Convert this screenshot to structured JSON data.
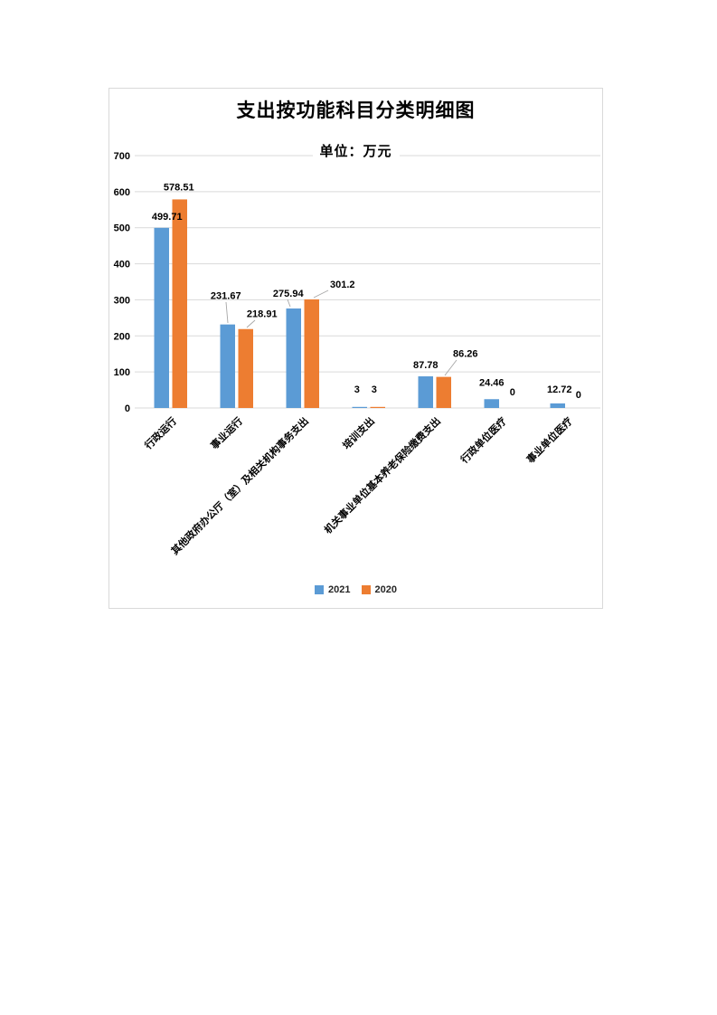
{
  "document": {
    "page_background": "#ffffff"
  },
  "chart": {
    "title": "支出按功能科目分类明细图",
    "unit_label": "单位：万元",
    "frame_border_color": "#d9d9d9",
    "gridline_color": "#d9d9d9",
    "axis_text_color": "#000000",
    "data_label_color": "#000000",
    "leader_line_color": "#a6a6a6"
  },
  "chart_data": {
    "type": "bar",
    "title": "支出按功能科目分类明细图",
    "subtitle": "单位：万元",
    "categories": [
      "行政运行",
      "事业运行",
      "其他政府办公厅（室）及相关机构事务支出",
      "培训支出",
      "机关事业单位基本养老保险缴费支出",
      "行政单位医疗",
      "事业单位医疗"
    ],
    "series": [
      {
        "name": "2021",
        "color": "#5b9bd5",
        "values": [
          499.71,
          231.67,
          275.94,
          3,
          87.78,
          24.46,
          12.72
        ]
      },
      {
        "name": "2020",
        "color": "#ed7d31",
        "values": [
          578.51,
          218.91,
          301.2,
          3,
          86.26,
          0,
          0
        ]
      }
    ],
    "data_labels": [
      "499.71",
      "578.51",
      "231.67",
      "218.91",
      "275.94",
      "301.2",
      "3",
      "3",
      "87.78",
      "86.26",
      "24.46",
      "0",
      "12.72",
      "0"
    ],
    "ylim": [
      0,
      700
    ],
    "yticks": [
      0,
      100,
      200,
      300,
      400,
      500,
      600,
      700
    ],
    "grid": true,
    "legend_position": "bottom",
    "data_labels_shown": true
  }
}
